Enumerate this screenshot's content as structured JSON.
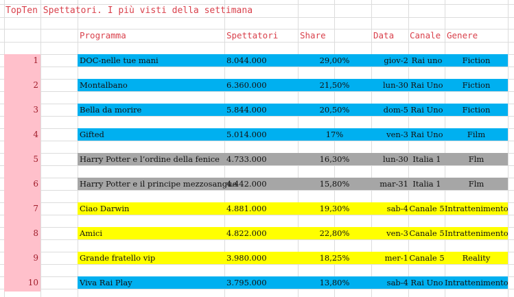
{
  "title": "TopTen Spettatori. I più visti della settimana",
  "headers": {
    "programma": "Programma",
    "spettatori": "Spettatori",
    "share": "Share",
    "data": "Data",
    "canale": "Canale",
    "genere": "Genere"
  },
  "colors": {
    "blue": "#00b0f0",
    "gray": "#a6a6a6",
    "yellow": "#ffff00",
    "pink": "#ffc0cb"
  },
  "rows": [
    {
      "rank": "1",
      "programma": "DOC-nelle tue mani",
      "spettatori": "8.044.000",
      "share": "29,00%",
      "data": "giov-2",
      "canale": "Rai uno",
      "genere": "Fiction",
      "color": "blue"
    },
    {
      "rank": "2",
      "programma": "Montalbano",
      "spettatori": "6.360.000",
      "share": "21,50%",
      "data": "lun-30",
      "canale": "Rai Uno",
      "genere": "Fiction",
      "color": "blue"
    },
    {
      "rank": "3",
      "programma": "Bella da morire",
      "spettatori": "5.844.000",
      "share": "20,50%",
      "data": "dom-5",
      "canale": "Rai Uno",
      "genere": "Fiction",
      "color": "blue"
    },
    {
      "rank": "4",
      "programma": "Gifted",
      "spettatori": "5.014.000",
      "share": "17%",
      "data": "ven-3",
      "canale": "Rai Uno",
      "genere": "Film",
      "color": "blue"
    },
    {
      "rank": "5",
      "programma": "Harry Potter e l’ordine della fenice",
      "spettatori": "4.733.000",
      "share": "16,30%",
      "data": "lun-30",
      "canale": "Italia 1",
      "genere": "Flm",
      "color": "gray"
    },
    {
      "rank": "6",
      "programma": "Harry Potter e il principe mezzosangue",
      "spettatori": "4.442.000",
      "share": "15,80%",
      "data": "mar-31",
      "canale": "Italia 1",
      "genere": "Flm",
      "color": "gray"
    },
    {
      "rank": "7",
      "programma": "Ciao Darwin",
      "spettatori": "4.881.000",
      "share": "19,30%",
      "data": "sab-4",
      "canale": "Canale 5",
      "genere": "Intrattenimento",
      "color": "yellow"
    },
    {
      "rank": "8",
      "programma": "Amici",
      "spettatori": "4.822.000",
      "share": "22,80%",
      "data": "ven-3",
      "canale": "Canale 5",
      "genere": "Intrattenimento",
      "color": "yellow"
    },
    {
      "rank": "9",
      "programma": "Grande fratello vip",
      "spettatori": "3.980.000",
      "share": "18,25%",
      "data": "mer-1",
      "canale": "Canale 5",
      "genere": "Reality",
      "color": "yellow"
    },
    {
      "rank": "10",
      "programma": "Viva Rai Play",
      "spettatori": "3.795.000",
      "share": "13,80%",
      "data": "sab-4",
      "canale": "Rai Uno",
      "genere": "Intrattenimento",
      "color": "blue"
    }
  ]
}
